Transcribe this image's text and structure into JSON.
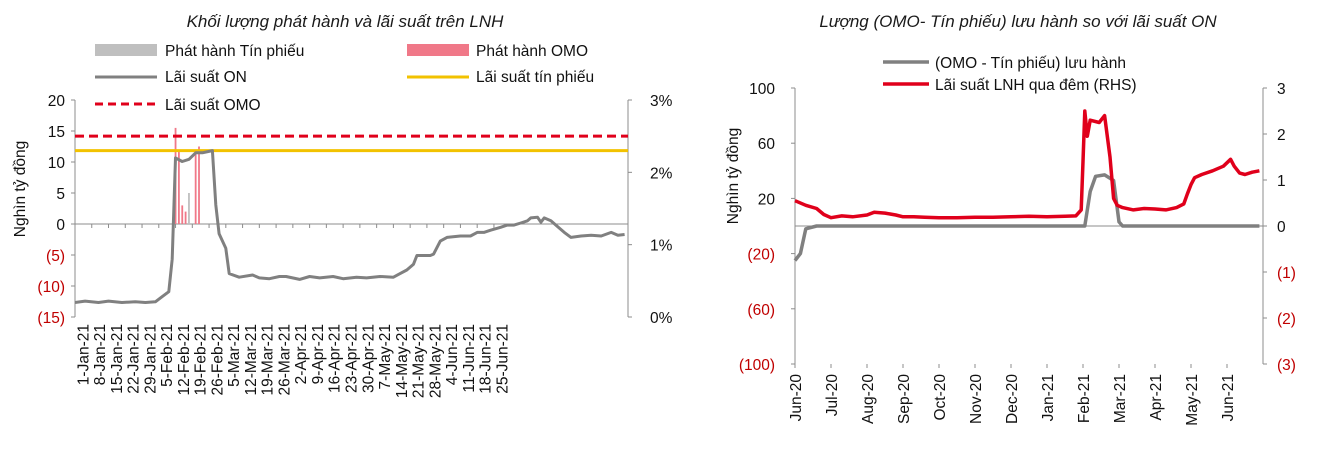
{
  "chart_data": [
    {
      "type": "line",
      "title": "Khối lượng phát hành và lãi suất trên LNH",
      "ylabel": "Nghìn tỷ đồng",
      "ylim": [
        -15,
        20
      ],
      "y2lim": [
        0,
        3
      ],
      "yticks": [
        "20",
        "15",
        "10",
        "5",
        "0",
        "(5)",
        "(10)",
        "(15)"
      ],
      "y2ticks": [
        "3%",
        "2%",
        "1%",
        "0%"
      ],
      "xticks": [
        "1-Jan-21",
        "8-Jan-21",
        "15-Jan-21",
        "22-Jan-21",
        "29-Jan-21",
        "5-Feb-21",
        "12-Feb-21",
        "19-Feb-21",
        "26-Feb-21",
        "5-Mar-21",
        "12-Mar-21",
        "19-Mar-21",
        "26-Mar-21",
        "2-Apr-21",
        "9-Apr-21",
        "16-Apr-21",
        "23-Apr-21",
        "30-Apr-21",
        "7-May-21",
        "14-May-21",
        "21-May-21",
        "28-May-21",
        "4-Jun-21",
        "11-Jun-21",
        "18-Jun-21",
        "25-Jun-21"
      ],
      "legend": {
        "tinphieu": "Phát hành  Tín phiếu",
        "omo": "Phát hành OMO",
        "on": "Lãi suất ON",
        "lstinphieu": "Lãi suất tín phiếu",
        "lsomo": "Lãi suất OMO"
      },
      "colors": {
        "tinphieu": "#bfbfbf",
        "omo": "#f07888",
        "on": "#808080",
        "lstinphieu": "#f2c200",
        "lsomo": "#e0001b"
      },
      "omo_rate": 2.5,
      "tinphieu_rate": 2.3,
      "bars_omo": [
        [
          30,
          15.5
        ],
        [
          31,
          12.0
        ],
        [
          32,
          3.0
        ],
        [
          33,
          2.0
        ],
        [
          36,
          12.0
        ],
        [
          37,
          12.5
        ]
      ],
      "bars_tinphieu": [
        [
          34,
          5.0
        ]
      ],
      "on_rate": [
        [
          0,
          0.2
        ],
        [
          3,
          0.22
        ],
        [
          7,
          0.2
        ],
        [
          10,
          0.22
        ],
        [
          14,
          0.2
        ],
        [
          18,
          0.21
        ],
        [
          21,
          0.2
        ],
        [
          24,
          0.21
        ],
        [
          26,
          0.28
        ],
        [
          28,
          0.35
        ],
        [
          29,
          0.8
        ],
        [
          30,
          2.2
        ],
        [
          32,
          2.15
        ],
        [
          34,
          2.18
        ],
        [
          36,
          2.27
        ],
        [
          38,
          2.27
        ],
        [
          41,
          2.3
        ],
        [
          42,
          1.55
        ],
        [
          43,
          1.15
        ],
        [
          45,
          0.95
        ],
        [
          46,
          0.6
        ],
        [
          49,
          0.55
        ],
        [
          53,
          0.58
        ],
        [
          55,
          0.54
        ],
        [
          58,
          0.53
        ],
        [
          61,
          0.56
        ],
        [
          63,
          0.56
        ],
        [
          67,
          0.52
        ],
        [
          70,
          0.56
        ],
        [
          73,
          0.54
        ],
        [
          77,
          0.56
        ],
        [
          80,
          0.53
        ],
        [
          84,
          0.55
        ],
        [
          87,
          0.54
        ],
        [
          91,
          0.56
        ],
        [
          95,
          0.55
        ],
        [
          97,
          0.6
        ],
        [
          99,
          0.65
        ],
        [
          101,
          0.73
        ],
        [
          102,
          0.85
        ],
        [
          106,
          0.85
        ],
        [
          107,
          0.87
        ],
        [
          109,
          1.05
        ],
        [
          111,
          1.1
        ],
        [
          115,
          1.12
        ],
        [
          118,
          1.12
        ],
        [
          120,
          1.17
        ],
        [
          122,
          1.17
        ],
        [
          124,
          1.2
        ],
        [
          127,
          1.24
        ],
        [
          129,
          1.27
        ],
        [
          131,
          1.27
        ],
        [
          133,
          1.3
        ],
        [
          135,
          1.33
        ],
        [
          136,
          1.37
        ],
        [
          138,
          1.38
        ],
        [
          139,
          1.31
        ],
        [
          140,
          1.37
        ],
        [
          142,
          1.33
        ],
        [
          144,
          1.25
        ],
        [
          146,
          1.17
        ],
        [
          148,
          1.1
        ],
        [
          151,
          1.12
        ],
        [
          154,
          1.13
        ],
        [
          157,
          1.12
        ],
        [
          160,
          1.17
        ],
        [
          162,
          1.13
        ],
        [
          164,
          1.14
        ]
      ]
    },
    {
      "type": "line",
      "title": "Lượng (OMO- Tín phiếu) lưu hành so với lãi suất ON",
      "ylabel": "Nghìn tỷ đồng",
      "ylim": [
        -100,
        100
      ],
      "y2lim": [
        -3,
        3
      ],
      "yticks": [
        "100",
        "60",
        "20",
        "(20)",
        "(60)",
        "(100)"
      ],
      "y2ticks": [
        "3",
        "2",
        "1",
        "0",
        "(1)",
        "(2)",
        "(3)"
      ],
      "xticks": [
        "Jun-20",
        "Jul-20",
        "Aug-20",
        "Sep-20",
        "Oct-20",
        "Nov-20",
        "Dec-20",
        "Jan-21",
        "Feb-21",
        "Mar-21",
        "Apr-21",
        "May-21",
        "Jun-21"
      ],
      "legend": {
        "omo": "(OMO - Tín phiếu) lưu hành",
        "on": "Lãi suất LNH qua đêm (RHS)"
      },
      "colors": {
        "omo": "#808080",
        "on": "#e0001b"
      },
      "outstanding": [
        [
          0,
          -25
        ],
        [
          0.15,
          -20
        ],
        [
          0.3,
          -2
        ],
        [
          0.6,
          0
        ],
        [
          8.05,
          0
        ],
        [
          8.2,
          25
        ],
        [
          8.35,
          36
        ],
        [
          8.6,
          37
        ],
        [
          8.85,
          33
        ],
        [
          9.0,
          3
        ],
        [
          9.1,
          0
        ],
        [
          12.9,
          0
        ]
      ],
      "on_rate": [
        [
          0,
          0.55
        ],
        [
          0.3,
          0.45
        ],
        [
          0.6,
          0.38
        ],
        [
          0.8,
          0.25
        ],
        [
          1.0,
          0.18
        ],
        [
          1.3,
          0.22
        ],
        [
          1.6,
          0.2
        ],
        [
          2.0,
          0.24
        ],
        [
          2.2,
          0.3
        ],
        [
          2.5,
          0.28
        ],
        [
          2.8,
          0.24
        ],
        [
          3.0,
          0.2
        ],
        [
          3.3,
          0.2
        ],
        [
          3.6,
          0.19
        ],
        [
          4.0,
          0.18
        ],
        [
          4.5,
          0.18
        ],
        [
          5.0,
          0.19
        ],
        [
          5.5,
          0.19
        ],
        [
          6.0,
          0.2
        ],
        [
          6.5,
          0.21
        ],
        [
          7.0,
          0.2
        ],
        [
          7.5,
          0.21
        ],
        [
          7.8,
          0.22
        ],
        [
          7.95,
          0.35
        ],
        [
          8.0,
          1.4
        ],
        [
          8.05,
          2.5
        ],
        [
          8.12,
          1.95
        ],
        [
          8.2,
          2.3
        ],
        [
          8.45,
          2.25
        ],
        [
          8.6,
          2.4
        ],
        [
          8.75,
          1.5
        ],
        [
          8.85,
          0.6
        ],
        [
          8.95,
          0.45
        ],
        [
          9.1,
          0.4
        ],
        [
          9.4,
          0.35
        ],
        [
          9.7,
          0.38
        ],
        [
          10.0,
          0.37
        ],
        [
          10.3,
          0.35
        ],
        [
          10.6,
          0.4
        ],
        [
          10.8,
          0.48
        ],
        [
          10.9,
          0.7
        ],
        [
          11.0,
          0.9
        ],
        [
          11.1,
          1.05
        ],
        [
          11.3,
          1.12
        ],
        [
          11.6,
          1.2
        ],
        [
          11.9,
          1.3
        ],
        [
          12.1,
          1.45
        ],
        [
          12.2,
          1.3
        ],
        [
          12.35,
          1.15
        ],
        [
          12.5,
          1.12
        ],
        [
          12.7,
          1.17
        ],
        [
          12.9,
          1.2
        ]
      ]
    }
  ]
}
